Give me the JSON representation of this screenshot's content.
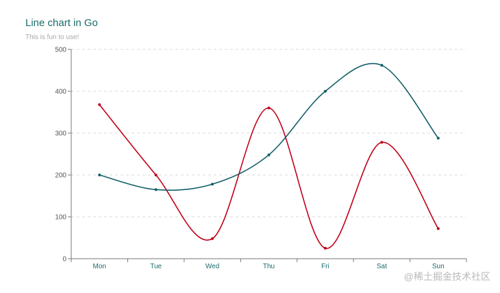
{
  "chart_data": {
    "type": "line",
    "title": "Line chart in Go",
    "subtitle": "This is fun to use!",
    "categories": [
      "Mon",
      "Tue",
      "Wed",
      "Thu",
      "Fri",
      "Sat",
      "Sun"
    ],
    "series": [
      {
        "color": "#c0001b",
        "values": [
          368,
          200,
          48,
          360,
          25,
          278,
          72
        ]
      },
      {
        "color": "#125f69",
        "values": [
          200,
          165,
          178,
          248,
          400,
          462,
          288
        ]
      }
    ],
    "ylim": [
      0,
      500
    ],
    "yticks": [
      0,
      100,
      200,
      300,
      400,
      500
    ],
    "grid": true,
    "smooth": true
  },
  "watermark": "@稀土掘金技术社区"
}
